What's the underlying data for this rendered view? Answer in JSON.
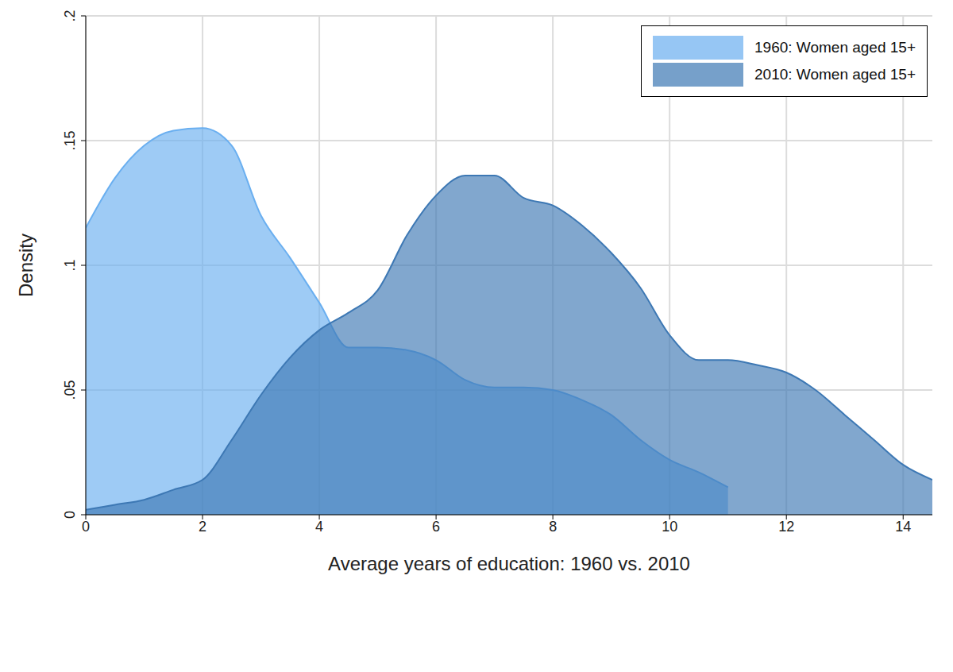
{
  "chart_data": {
    "type": "area",
    "x_label": "Average years of education:  1960 vs. 2010",
    "y_label": "Density",
    "x": [
      0,
      0.5,
      1,
      1.5,
      2,
      2.5,
      3,
      3.5,
      4,
      4.5,
      5,
      5.5,
      6,
      6.5,
      7,
      7.5,
      8,
      8.5,
      9,
      9.5,
      10,
      10.5,
      11,
      11.5,
      12,
      12.5,
      13,
      13.5,
      14,
      14.5
    ],
    "series": [
      {
        "name": "1960:  Women aged 15+",
        "color": "#6aaff0",
        "values": [
          0.115,
          0.135,
          0.148,
          0.154,
          0.155,
          0.148,
          0.12,
          0.103,
          0.085,
          0.067,
          0.067,
          0.066,
          0.062,
          0.054,
          0.051,
          0.051,
          0.05,
          0.046,
          0.04,
          0.03,
          0.022,
          0.017,
          0.011,
          null,
          null,
          null,
          null,
          null,
          null,
          null
        ]
      },
      {
        "name": "2010:  Women aged 15+",
        "color": "#3d78b4",
        "values": [
          0.002,
          0.004,
          0.006,
          0.01,
          0.014,
          0.03,
          0.048,
          0.063,
          0.074,
          0.081,
          0.09,
          0.112,
          0.128,
          0.136,
          0.136,
          0.127,
          0.124,
          0.116,
          0.105,
          0.091,
          0.072,
          0.062,
          0.062,
          0.06,
          0.057,
          0.05,
          0.04,
          0.03,
          0.02,
          0.014
        ]
      }
    ],
    "xlim": [
      0,
      14.5
    ],
    "xticks": [
      0,
      2,
      4,
      6,
      8,
      10,
      12,
      14
    ],
    "ylim": [
      0,
      0.2
    ],
    "yticks": [
      0,
      {
        "value": 0.05,
        "label": ".05"
      },
      {
        "value": 0.1,
        "label": ".1"
      },
      {
        "value": 0.15,
        "label": ".15"
      },
      {
        "value": 0.2,
        "label": ".2"
      }
    ],
    "grid": true,
    "legend": "upper right"
  }
}
